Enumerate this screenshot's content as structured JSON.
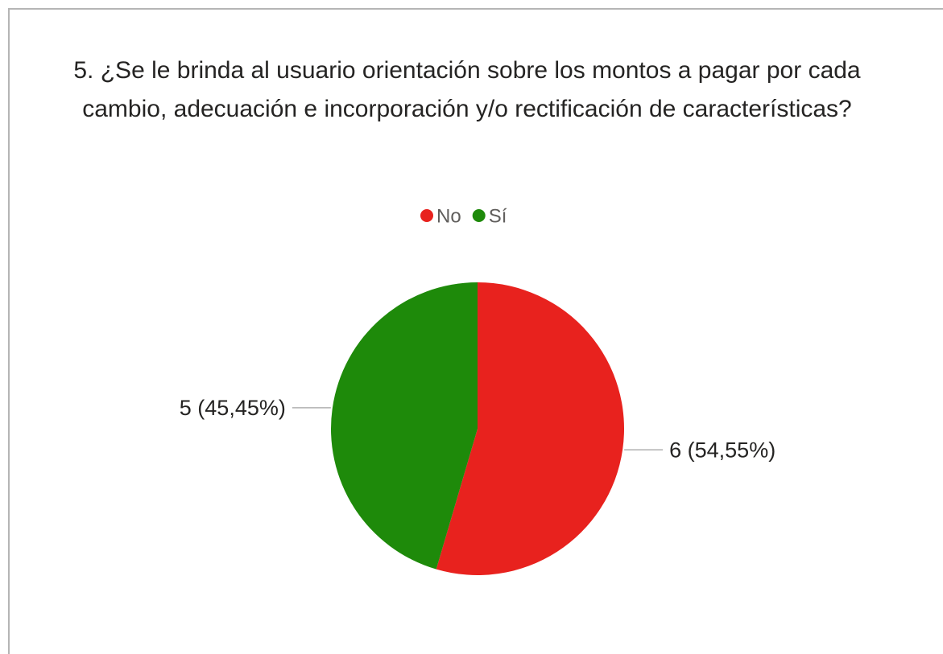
{
  "chart_data": {
    "type": "pie",
    "title": "5. ¿Se le brinda al usuario orientación sobre los montos a pagar por cada cambio, adecuación e incorporación y/o rectificación de características?",
    "categories": [
      "No",
      "Sí"
    ],
    "values": [
      6,
      5
    ],
    "value_labels": [
      "6 (54,55%)",
      "5 (45,45%)"
    ],
    "colors": [
      "#e8221e",
      "#1e8a0a"
    ],
    "legend": "top"
  }
}
